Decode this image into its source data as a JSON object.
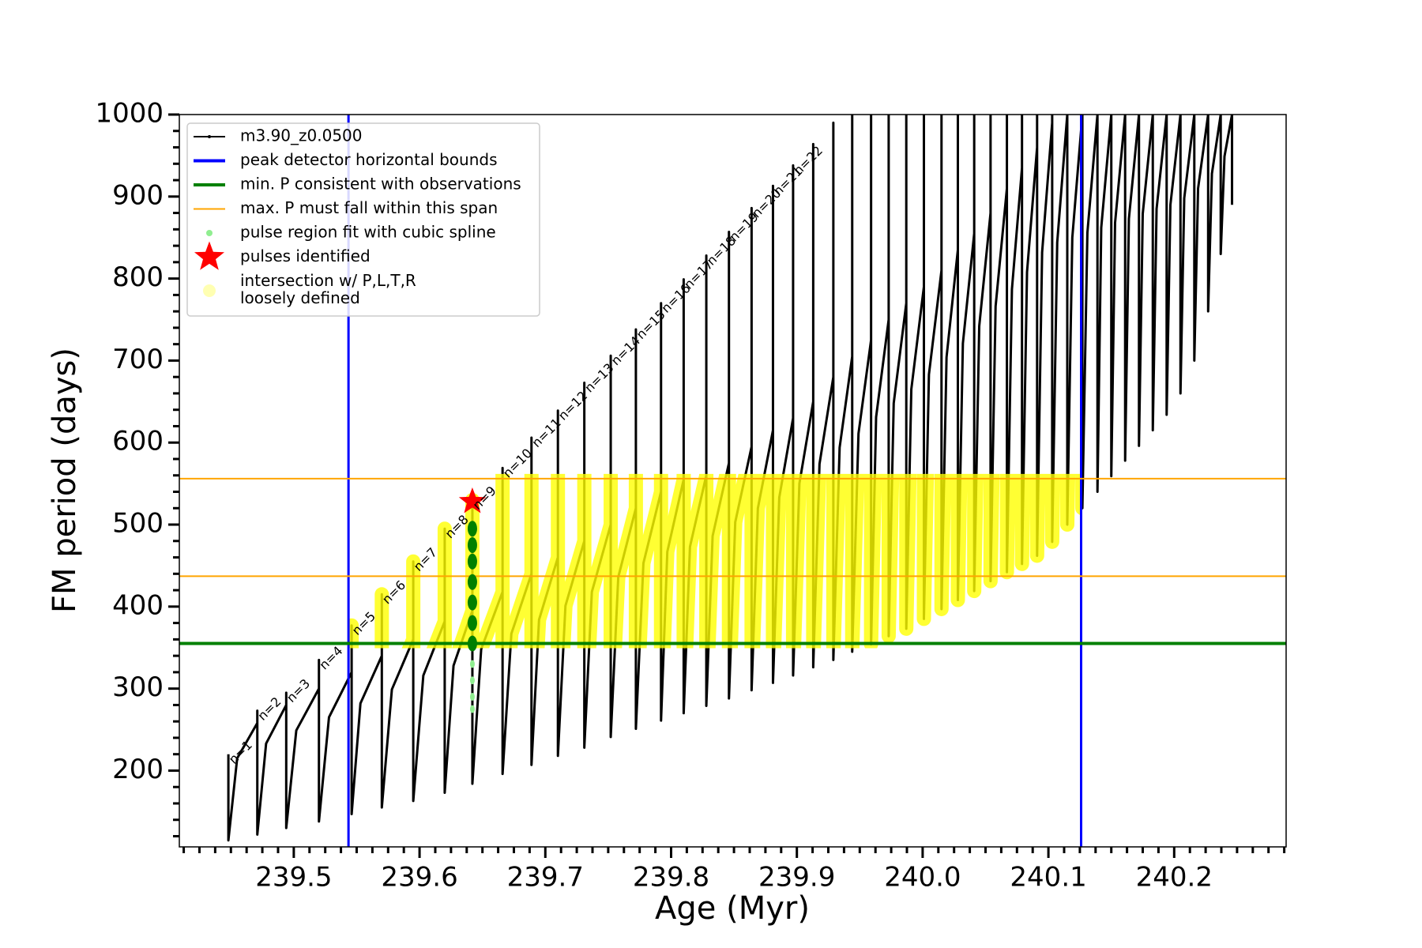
{
  "chart_data": {
    "type": "line",
    "xlabel": "Age (Myr)",
    "ylabel": "FM period (days)",
    "xlim": [
      239.409,
      240.289
    ],
    "ylim": [
      107,
      1000
    ],
    "xticks": [
      239.5,
      239.6,
      239.7,
      239.8,
      239.9,
      {
        "value": 240.0,
        "label": "240.0"
      },
      240.1,
      240.2
    ],
    "yticks": [
      200,
      300,
      400,
      500,
      600,
      700,
      800,
      900,
      1000
    ],
    "xminor_step": 0.0125,
    "yminor_step": 20,
    "legend": "upper left",
    "annotations": [
      "n=1",
      "n=2",
      "n=3",
      "n=4",
      "n=5",
      "n=6",
      "n=7",
      "n=8",
      "n=9",
      "n=10",
      "n=11",
      "n=12",
      "n=13",
      "n=14",
      "n=15",
      "n=16",
      "n=17",
      "n=18",
      "n=19",
      "n=20",
      "n=21",
      "n=22"
    ],
    "series": [
      {
        "name": "m3.90_z0.0500",
        "kind": "track",
        "color": "#000000",
        "x": [
          239.448,
          239.448,
          239.455,
          239.471,
          239.471,
          239.471,
          239.478,
          239.494,
          239.494,
          239.494,
          239.502,
          239.52,
          239.52,
          239.52,
          239.528,
          239.546,
          239.546,
          239.546,
          239.553,
          239.57,
          239.57,
          239.57,
          239.578,
          239.595,
          239.595,
          239.595,
          239.603,
          239.62,
          239.62,
          239.62,
          239.627,
          239.642,
          239.642,
          239.642,
          239.649,
          239.666,
          239.666,
          239.666,
          239.673,
          239.689,
          239.689,
          239.689,
          239.695,
          239.71,
          239.71,
          239.71,
          239.716,
          239.731,
          239.731,
          239.731,
          239.737,
          239.752,
          239.752,
          239.752,
          239.758,
          239.772,
          239.772,
          239.772,
          239.778,
          239.792,
          239.792,
          239.792,
          239.797,
          239.81,
          239.81,
          239.81,
          239.815,
          239.828,
          239.828,
          239.828,
          239.833,
          239.846,
          239.846,
          239.846,
          239.851,
          239.864,
          239.864,
          239.864,
          239.869,
          239.881,
          239.881,
          239.881,
          239.886,
          239.897,
          239.897,
          239.897,
          239.902,
          239.913,
          239.913,
          239.913,
          239.918,
          239.929,
          239.929,
          239.929,
          239.934,
          239.944,
          239.944,
          239.944,
          239.949,
          239.959,
          239.959,
          239.959,
          239.963,
          239.973,
          239.973,
          239.973,
          239.977,
          239.987,
          239.987,
          239.987,
          239.991,
          240.001,
          240.001,
          240.001,
          240.005,
          240.015,
          240.015,
          240.015,
          240.019,
          240.028,
          240.028,
          240.028,
          240.032,
          240.041,
          240.041,
          240.041,
          240.045,
          240.054,
          240.054,
          240.054,
          240.058,
          240.067,
          240.067,
          240.067,
          240.071,
          240.079,
          240.079,
          240.079,
          240.083,
          240.091,
          240.091,
          240.091,
          240.095,
          240.103,
          240.103,
          240.103,
          240.107,
          240.115,
          240.115,
          240.115,
          240.119,
          240.127,
          240.127,
          240.127,
          240.131,
          240.139,
          240.139,
          240.139,
          240.142,
          240.15,
          240.15,
          240.15,
          240.153,
          240.161,
          240.161,
          240.161,
          240.164,
          240.172,
          240.172,
          240.172,
          240.175,
          240.183,
          240.183,
          240.183,
          240.186,
          240.194,
          240.194,
          240.194,
          240.197,
          240.205,
          240.205,
          240.205,
          240.208,
          240.216,
          240.216,
          240.216,
          240.219,
          240.227,
          240.227,
          240.227,
          240.23,
          240.237,
          240.237,
          240.237,
          240.24,
          240.246,
          240.246,
          240.246
        ],
        "y": [
          220,
          115,
          215,
          258,
          273,
          122,
          233,
          280,
          295,
          130,
          249,
          300,
          335,
          138,
          265,
          320,
          377,
          147,
          282,
          340,
          415,
          155,
          299,
          360,
          455,
          163,
          316,
          382,
          495,
          173,
          328,
          395,
          530,
          184,
          348,
          418,
          569,
          196,
          367,
          440,
          606,
          207,
          384,
          460,
          639,
          218,
          401,
          480,
          673,
          228,
          418,
          500,
          706,
          241,
          436,
          520,
          738,
          251,
          453,
          540,
          770,
          261,
          467,
          555,
          799,
          270,
          473,
          560,
          828,
          279,
          486,
          575,
          857,
          288,
          503,
          595,
          886,
          298,
          520,
          615,
          913,
          307,
          533,
          630,
          938,
          316,
          550,
          650,
          964,
          326,
          574,
          680,
          990,
          335,
          594,
          705,
          1000,
          345,
          611,
          725,
          1000,
          354,
          631,
          750,
          1000,
          364,
          648,
          770,
          1000,
          373,
          665,
          790,
          1000,
          385,
          683,
          810,
          1000,
          397,
          704,
          835,
          1000,
          408,
          721,
          855,
          1000,
          419,
          742,
          880,
          1000,
          431,
          766,
          910,
          1000,
          442,
          787,
          935,
          1000,
          452,
          808,
          960,
          1000,
          462,
          832,
          990,
          1000,
          479,
          844,
          1000,
          1000,
          500,
          850,
          1000,
          1000,
          520,
          856,
          1000,
          1000,
          540,
          862,
          1000,
          1000,
          559,
          868,
          1000,
          1000,
          578,
          873,
          1000,
          1000,
          596,
          879,
          1000,
          1000,
          615,
          885,
          1000,
          1000,
          634,
          890,
          1000,
          1000,
          660,
          898,
          1000,
          1000,
          700,
          910,
          1000,
          1000,
          760,
          928,
          1000,
          1000,
          830,
          949,
          1000,
          1000,
          890
        ]
      },
      {
        "name": "peak detector horizontal bounds",
        "kind": "vline",
        "color": "#0000ff",
        "x": [
          239.5435,
          240.126
        ]
      },
      {
        "name": "min. P consistent with observations",
        "kind": "hline",
        "color": "#008000",
        "y": [
          355
        ]
      },
      {
        "name": "max. P must fall within this span",
        "kind": "hline",
        "color": "#ffa500",
        "y": [
          437,
          556
        ]
      },
      {
        "name": "pulse region fit with cubic spline",
        "kind": "scatter",
        "color": "#90ee90",
        "x": [
          239.642,
          239.642,
          239.642,
          239.642,
          239.642,
          239.642,
          239.642,
          239.642,
          239.642,
          239.642,
          239.642
        ],
        "y": [
          275,
          290,
          310,
          330,
          355,
          380,
          405,
          430,
          455,
          475,
          495
        ]
      },
      {
        "name": "pulses identified",
        "kind": "star",
        "color": "#ff0000",
        "x": [
          239.642
        ],
        "y": [
          528
        ]
      },
      {
        "name": "intersection w/ P,L,T,R\nloosely defined",
        "kind": "intersection",
        "color": "#ffff00"
      }
    ]
  }
}
